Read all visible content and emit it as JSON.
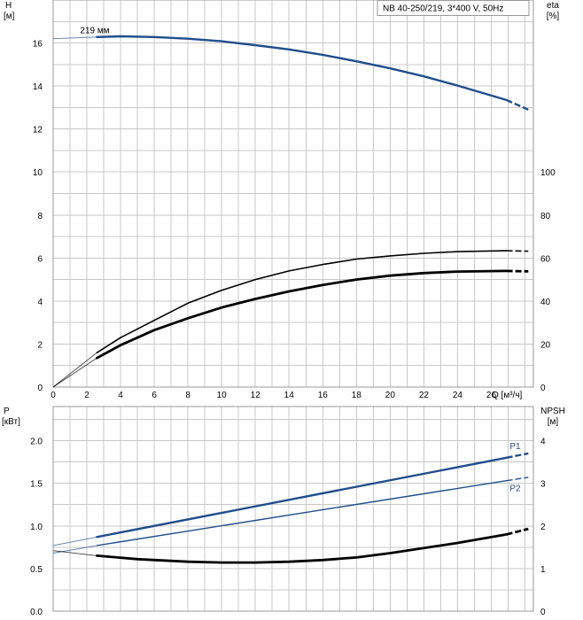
{
  "chart_data": [
    {
      "type": "line",
      "id": "head-efficiency",
      "title_box": "NB 40-250/219, 3*400 V, 50Hz",
      "ylabel_left": [
        "H",
        "[м]"
      ],
      "ylabel_right": [
        "eta",
        "[%]"
      ],
      "xlabel": "Q [м³/ч]",
      "xlim": [
        0,
        28.5
      ],
      "ylim_left": [
        0,
        18
      ],
      "ylim_right": [
        0,
        180
      ],
      "x_ticks": [
        0,
        2,
        4,
        6,
        8,
        10,
        12,
        14,
        16,
        18,
        20,
        22,
        24,
        26
      ],
      "y_ticks_left": [
        0,
        2,
        4,
        6,
        8,
        10,
        12,
        14,
        16
      ],
      "y_ticks_right": [
        0,
        20,
        40,
        60,
        80,
        100
      ],
      "grid": true,
      "series": [
        {
          "key": "head",
          "name": "219 мм",
          "axis": "left",
          "color": "#1f4e8c",
          "x": [
            2.6,
            4,
            6,
            8,
            10,
            12,
            14,
            16,
            18,
            20,
            22,
            24,
            26.9
          ],
          "y": [
            16.28,
            16.31,
            16.28,
            16.2,
            16.08,
            15.9,
            15.7,
            15.45,
            15.15,
            14.82,
            14.45,
            14.02,
            13.35
          ],
          "lead_in": {
            "x": [
              0,
              2.6
            ],
            "y": [
              16.2,
              16.28
            ]
          },
          "extension": {
            "x": [
              26.9,
              28.2
            ],
            "y": [
              13.35,
              12.9
            ]
          }
        },
        {
          "key": "eta",
          "axis": "right",
          "color": "#000000",
          "x": [
            2.6,
            4,
            6,
            8,
            10,
            12,
            14,
            16,
            18,
            20,
            22,
            24,
            26.9
          ],
          "y": [
            16,
            23,
            31,
            39,
            45,
            50,
            54,
            57,
            59.5,
            61,
            62.2,
            63,
            63.4
          ],
          "lead_in": {
            "x": [
              0,
              2.6
            ],
            "y": [
              0,
              16
            ]
          },
          "extension": {
            "x": [
              26.9,
              28.2
            ],
            "y": [
              63.4,
              63.2
            ]
          }
        },
        {
          "key": "eta-motor",
          "axis": "right",
          "color": "#000000",
          "x": [
            2.6,
            4,
            6,
            8,
            10,
            12,
            14,
            16,
            18,
            20,
            22,
            24,
            26.9
          ],
          "y": [
            13.5,
            19.5,
            26.5,
            32,
            37,
            41,
            44.5,
            47.5,
            50,
            51.8,
            53,
            53.7,
            54
          ],
          "lead_in": {
            "x": [
              0,
              2.6
            ],
            "y": [
              0,
              13.5
            ]
          },
          "extension": {
            "x": [
              26.9,
              28.2
            ],
            "y": [
              54,
              53.8
            ]
          }
        }
      ]
    },
    {
      "type": "line",
      "id": "power-npsh",
      "ylabel_left": [
        "P",
        "[кВт]"
      ],
      "ylabel_right": [
        "NPSH",
        "[м]"
      ],
      "xlim": [
        0,
        28.5
      ],
      "ylim_left": [
        0,
        2.4
      ],
      "ylim_right": [
        0,
        4.8
      ],
      "x_ticks": [
        0,
        2,
        4,
        6,
        8,
        10,
        12,
        14,
        16,
        18,
        20,
        22,
        24,
        26
      ],
      "y_ticks_left": [
        0.0,
        0.5,
        1.0,
        1.5,
        2.0
      ],
      "y_ticks_left_labels": [
        "0.0",
        "0.5",
        "1.0",
        "1.5",
        "2.0"
      ],
      "y_ticks_right": [
        0,
        1,
        2,
        3,
        4
      ],
      "grid": true,
      "series": [
        {
          "key": "p1",
          "name": "P1",
          "axis": "left",
          "color": "#1f4e8c",
          "x": [
            2.6,
            26.9
          ],
          "y": [
            0.87,
            1.8
          ],
          "lead_in": {
            "x": [
              0,
              2.6
            ],
            "y": [
              0.77,
              0.87
            ]
          },
          "extension": {
            "x": [
              26.9,
              28.2
            ],
            "y": [
              1.8,
              1.85
            ]
          }
        },
        {
          "key": "p2",
          "name": "P2",
          "axis": "left",
          "color": "#1f4e8c",
          "x": [
            2.6,
            26.9
          ],
          "y": [
            0.77,
            1.53
          ],
          "lead_in": {
            "x": [
              0,
              2.6
            ],
            "y": [
              0.68,
              0.77
            ]
          },
          "extension": {
            "x": [
              26.9,
              28.2
            ],
            "y": [
              1.53,
              1.57
            ]
          }
        },
        {
          "key": "npsh",
          "axis": "right",
          "color": "#000000",
          "x": [
            2.6,
            5,
            8,
            10,
            12,
            14,
            16,
            18,
            20,
            22,
            24,
            26.9
          ],
          "y": [
            1.3,
            1.22,
            1.16,
            1.14,
            1.14,
            1.16,
            1.2,
            1.26,
            1.36,
            1.48,
            1.6,
            1.8
          ],
          "lead_in": {
            "x": [
              0,
              2.6
            ],
            "y": [
              1.42,
              1.3
            ]
          },
          "extension": {
            "x": [
              26.9,
              28.2
            ],
            "y": [
              1.8,
              1.93
            ]
          }
        }
      ]
    }
  ]
}
